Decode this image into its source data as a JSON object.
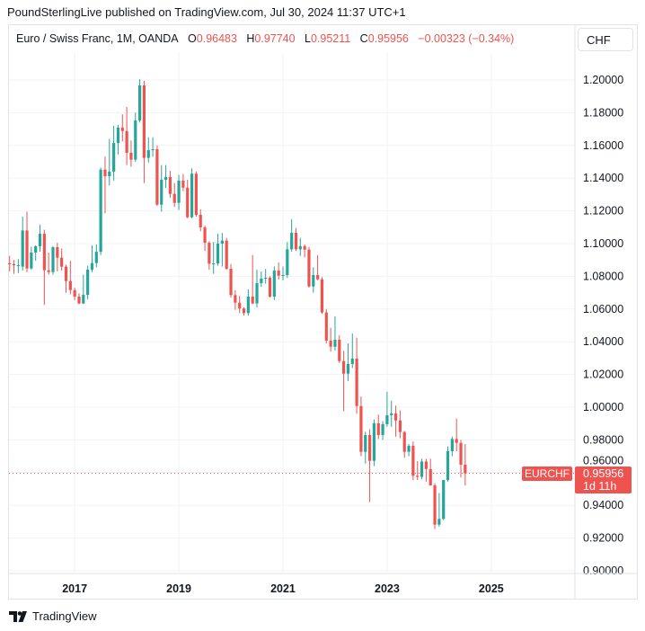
{
  "publish_line": "PoundSterlingLive published on TradingView.com, Jul 30, 2024 11:37 UTC+1",
  "legend": {
    "symbol": "Euro / Swiss Franc, 1M, OANDA",
    "o_label": "O",
    "o": "0.96483",
    "h_label": "H",
    "h": "0.97740",
    "l_label": "L",
    "l": "0.95211",
    "c_label": "C",
    "c": "0.95956",
    "change": "−0.00323 (−0.34%)"
  },
  "currency_button": "CHF",
  "price_tag": {
    "symbol": "EURCHF",
    "price": "0.95956",
    "countdown": "1d 11h"
  },
  "footer": {
    "brand": "TradingView"
  },
  "colors": {
    "up": "#26a69a",
    "down": "#ef5350",
    "grid": "#f0f3fa"
  },
  "chart_data": {
    "type": "candlestick",
    "interval": "1M",
    "first_bar": "2015-10",
    "last_price": 0.95956,
    "ylim": [
      0.9,
      1.2
    ],
    "y_ticks": [
      "1.20000",
      "1.18000",
      "1.16000",
      "1.14000",
      "1.12000",
      "1.10000",
      "1.08000",
      "1.06000",
      "1.04000",
      "1.02000",
      "1.00000",
      "0.98000",
      "0.96000",
      "0.94000",
      "0.92000",
      "0.90000"
    ],
    "y_tick_values": [
      1.2,
      1.18,
      1.16,
      1.14,
      1.12,
      1.1,
      1.08,
      1.06,
      1.04,
      1.02,
      1.0,
      0.98,
      0.96,
      0.94,
      0.92,
      0.9
    ],
    "x_ticks": [
      {
        "label": "2017",
        "year": 2017
      },
      {
        "label": "2019",
        "year": 2019
      },
      {
        "label": "2021",
        "year": 2021
      },
      {
        "label": "2023",
        "year": 2023
      },
      {
        "label": "2025",
        "year": 2025
      }
    ],
    "ohlc": [
      [
        1.088,
        1.0925,
        1.083,
        1.0874
      ],
      [
        1.0874,
        1.09,
        1.0815,
        1.0868
      ],
      [
        1.0868,
        1.0905,
        1.082,
        1.0868
      ],
      [
        1.0859,
        1.1165,
        1.0835,
        1.108
      ],
      [
        1.108,
        1.1195,
        1.0825,
        1.0848
      ],
      [
        1.0848,
        1.098,
        1.084,
        1.0945
      ],
      [
        1.0945,
        1.099,
        1.0895,
        1.0984
      ],
      [
        1.0984,
        1.1115,
        1.095,
        1.106
      ],
      [
        1.106,
        1.1085,
        1.0625,
        1.0837
      ],
      [
        1.0837,
        1.0945,
        1.081,
        1.0826
      ],
      [
        1.0826,
        1.0985,
        1.081,
        1.0978
      ],
      [
        1.0978,
        1.1005,
        1.083,
        1.0914
      ],
      [
        1.0914,
        1.097,
        1.0835,
        1.0859
      ],
      [
        1.0859,
        1.087,
        1.07,
        1.0771
      ],
      [
        1.0771,
        1.0895,
        1.069,
        1.0716
      ],
      [
        1.0716,
        1.073,
        1.0655,
        1.0676
      ],
      [
        1.0676,
        1.0695,
        1.063,
        1.0634
      ],
      [
        1.0634,
        1.081,
        1.063,
        1.0687
      ],
      [
        1.0687,
        1.0865,
        1.066,
        1.0841
      ],
      [
        1.0841,
        1.099,
        1.0825,
        1.0881
      ],
      [
        1.0881,
        1.0995,
        1.0855,
        1.095
      ],
      [
        1.095,
        1.1465,
        1.093,
        1.1452
      ],
      [
        1.1452,
        1.1532,
        1.1185,
        1.1412
      ],
      [
        1.1412,
        1.164,
        1.1355,
        1.144
      ],
      [
        1.144,
        1.172,
        1.1385,
        1.1615
      ],
      [
        1.1615,
        1.1725,
        1.1545,
        1.1709
      ],
      [
        1.1709,
        1.179,
        1.1625,
        1.1688
      ],
      [
        1.1688,
        1.1835,
        1.148,
        1.1555
      ],
      [
        1.1555,
        1.163,
        1.147,
        1.1513
      ],
      [
        1.1513,
        1.18,
        1.15,
        1.1753
      ],
      [
        1.1753,
        1.2005,
        1.174,
        1.1967
      ],
      [
        1.1967,
        1.1995,
        1.137,
        1.1524
      ],
      [
        1.1524,
        1.165,
        1.1495,
        1.1571
      ],
      [
        1.1571,
        1.165,
        1.153,
        1.1577
      ],
      [
        1.1577,
        1.16,
        1.123,
        1.1238
      ],
      [
        1.1238,
        1.148,
        1.1195,
        1.139
      ],
      [
        1.139,
        1.148,
        1.134,
        1.1407
      ],
      [
        1.1407,
        1.1445,
        1.128,
        1.1304
      ],
      [
        1.1304,
        1.137,
        1.1225,
        1.1249
      ],
      [
        1.1249,
        1.142,
        1.1205,
        1.1385
      ],
      [
        1.1385,
        1.1425,
        1.132,
        1.1342
      ],
      [
        1.1342,
        1.139,
        1.1155,
        1.1161
      ],
      [
        1.1161,
        1.146,
        1.1155,
        1.1427
      ],
      [
        1.1427,
        1.144,
        1.1165,
        1.1176
      ],
      [
        1.1176,
        1.121,
        1.1075,
        1.1099
      ],
      [
        1.1099,
        1.111,
        1.0955,
        1.1005
      ],
      [
        1.1005,
        1.1015,
        1.084,
        1.0877
      ],
      [
        1.0877,
        1.101,
        1.0815,
        1.0879
      ],
      [
        1.0879,
        1.106,
        1.0865,
        1.1
      ],
      [
        1.1,
        1.1065,
        1.086,
        1.1018
      ],
      [
        1.1018,
        1.1035,
        1.084,
        1.0846
      ],
      [
        1.0846,
        1.0875,
        1.067,
        1.0685
      ],
      [
        1.0685,
        1.0715,
        1.0595,
        1.0639
      ],
      [
        1.0639,
        1.068,
        1.0575,
        1.0603
      ],
      [
        1.0603,
        1.061,
        1.056,
        1.0575
      ],
      [
        1.0575,
        1.072,
        1.056,
        1.0676
      ],
      [
        1.0676,
        1.093,
        1.063,
        1.0634
      ],
      [
        1.0634,
        1.084,
        1.061,
        1.0758
      ],
      [
        1.0758,
        1.083,
        1.0735,
        1.0786
      ],
      [
        1.0786,
        1.0845,
        1.0755,
        1.0791
      ],
      [
        1.0791,
        1.08,
        1.067,
        1.0676
      ],
      [
        1.0676,
        1.086,
        1.0655,
        1.0835
      ],
      [
        1.0835,
        1.0885,
        1.078,
        1.0804
      ],
      [
        1.0804,
        1.086,
        1.0775,
        1.0808
      ],
      [
        1.0808,
        1.101,
        1.079,
        1.0965
      ],
      [
        1.0965,
        1.115,
        1.095,
        1.1066
      ],
      [
        1.1066,
        1.1095,
        1.0955,
        1.0965
      ],
      [
        1.0965,
        1.1035,
        1.0925,
        1.0984
      ],
      [
        1.0984,
        1.0995,
        1.0915,
        1.0963
      ],
      [
        1.0963,
        1.098,
        1.073,
        1.0738
      ],
      [
        1.0738,
        1.0855,
        1.07,
        1.0808
      ],
      [
        1.0808,
        1.093,
        1.0775,
        1.0782
      ],
      [
        1.0782,
        1.0795,
        1.057,
        1.0579
      ],
      [
        1.0579,
        1.06,
        1.039,
        1.0407
      ],
      [
        1.0407,
        1.0485,
        1.034,
        1.037
      ],
      [
        1.037,
        1.0555,
        1.0345,
        1.0412
      ],
      [
        1.0412,
        1.044,
        1.027,
        1.0282
      ],
      [
        1.0282,
        1.0345,
        0.9975,
        1.0205
      ],
      [
        1.0205,
        1.039,
        1.016,
        1.0264
      ],
      [
        1.0264,
        1.045,
        1.024,
        1.0297
      ],
      [
        1.0297,
        1.0425,
        0.996,
        1.0007
      ],
      [
        1.0007,
        1.0065,
        0.97,
        0.9727
      ],
      [
        0.9727,
        0.985,
        0.9655,
        0.983
      ],
      [
        0.983,
        0.9865,
        0.942,
        0.9672
      ],
      [
        0.9672,
        0.9925,
        0.964,
        0.9901
      ],
      [
        0.9901,
        0.9955,
        0.9805,
        0.983
      ],
      [
        0.983,
        0.9915,
        0.98,
        0.9896
      ],
      [
        0.9896,
        1.0095,
        0.988,
        0.9951
      ],
      [
        0.9951,
        1.004,
        0.988,
        0.9962
      ],
      [
        0.9962,
        1.001,
        0.982,
        0.9919
      ],
      [
        0.9919,
        0.998,
        0.981,
        0.9848
      ],
      [
        0.9848,
        0.9855,
        0.969,
        0.9727
      ],
      [
        0.9727,
        0.9775,
        0.97,
        0.9764
      ],
      [
        0.9764,
        0.979,
        0.9555,
        0.9581
      ],
      [
        0.9581,
        0.967,
        0.9555,
        0.9574
      ],
      [
        0.9574,
        0.9685,
        0.956,
        0.9668
      ],
      [
        0.9668,
        0.9685,
        0.9545,
        0.9622
      ],
      [
        0.9622,
        0.9685,
        0.952,
        0.9522
      ],
      [
        0.9522,
        0.9535,
        0.9255,
        0.9282
      ],
      [
        0.9282,
        0.9475,
        0.927,
        0.9317
      ],
      [
        0.9317,
        0.9555,
        0.931,
        0.9555
      ],
      [
        0.9555,
        0.976,
        0.9545,
        0.9731
      ],
      [
        0.9731,
        0.982,
        0.97,
        0.9806
      ],
      [
        0.9806,
        0.993,
        0.973,
        0.9782
      ],
      [
        0.9782,
        0.98,
        0.957,
        0.96483
      ],
      [
        0.96483,
        0.9774,
        0.95211,
        0.95956
      ]
    ]
  }
}
